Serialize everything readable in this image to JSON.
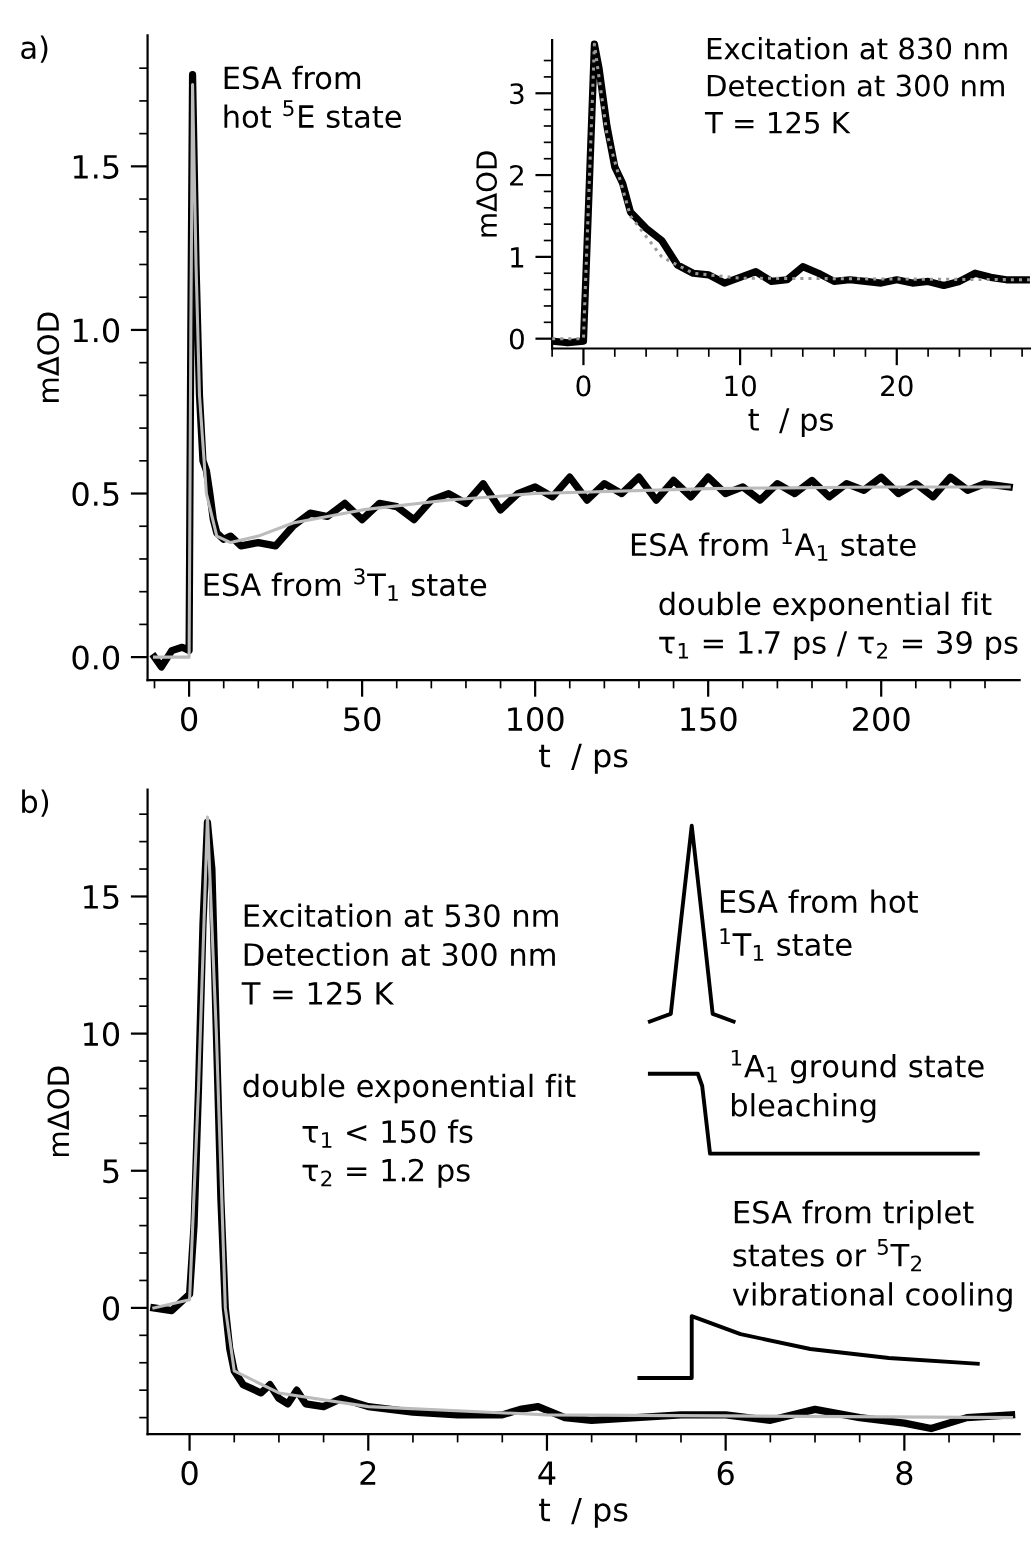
{
  "chart_data": [
    {
      "type": "line",
      "xlabel": "t  / ps",
      "ylabel": "mΔOD",
      "xlim": [
        -12,
        240
      ],
      "ylim": [
        -0.07,
        1.9
      ],
      "xticks": [
        {
          "value": -10,
          "label": null
        },
        0,
        {
          "value": 10,
          "label": null
        },
        {
          "value": 20,
          "label": null
        },
        {
          "value": 30,
          "label": null
        },
        {
          "value": 40,
          "label": null
        },
        50,
        {
          "value": 60,
          "label": null
        },
        {
          "value": 70,
          "label": null
        },
        {
          "value": 80,
          "label": null
        },
        {
          "value": 90,
          "label": null
        },
        100,
        {
          "value": 110,
          "label": null
        },
        {
          "value": 120,
          "label": null
        },
        {
          "value": 130,
          "label": null
        },
        {
          "value": 140,
          "label": null
        },
        150,
        {
          "value": 160,
          "label": null
        },
        {
          "value": 170,
          "label": null
        },
        {
          "value": 180,
          "label": null
        },
        {
          "value": 190,
          "label": null
        },
        200,
        {
          "value": 210,
          "label": null
        },
        {
          "value": 220,
          "label": null
        },
        {
          "value": 230,
          "label": null
        }
      ],
      "yticks": [
        {
          "value": 0,
          "label": "0.0"
        },
        {
          "value": 0.1,
          "label": null
        },
        {
          "value": 0.2,
          "label": null
        },
        {
          "value": 0.3,
          "label": null
        },
        {
          "value": 0.4,
          "label": null
        },
        0.5,
        {
          "value": 0.6,
          "label": null
        },
        {
          "value": 0.7,
          "label": null
        },
        {
          "value": 0.8,
          "label": null
        },
        {
          "value": 0.9,
          "label": null
        },
        {
          "value": 1,
          "label": "1.0"
        },
        {
          "value": 1.1,
          "label": null
        },
        {
          "value": 1.2,
          "label": null
        },
        {
          "value": 1.3,
          "label": null
        },
        {
          "value": 1.4,
          "label": null
        },
        1.5,
        {
          "value": 1.6,
          "label": null
        },
        {
          "value": 1.7,
          "label": null
        },
        {
          "value": 1.8,
          "label": null
        }
      ],
      "grid": false,
      "legend": false,
      "series": [
        {
          "color": "#000000",
          "line_style": "solid",
          "x": [
            -10,
            -8,
            -5,
            -2,
            0,
            0.5,
            1,
            2,
            3,
            4,
            5,
            6,
            7,
            8,
            10,
            12,
            15,
            20,
            25,
            30,
            35,
            40,
            45,
            50,
            55,
            60,
            65,
            70,
            75,
            80,
            85,
            90,
            95,
            100,
            105,
            110,
            115,
            120,
            125,
            130,
            135,
            140,
            145,
            150,
            155,
            160,
            165,
            170,
            175,
            180,
            185,
            190,
            195,
            200,
            205,
            210,
            215,
            220,
            225,
            230,
            237
          ],
          "values": [
            0,
            -0.03,
            0.02,
            0.03,
            0.02,
            1.0,
            1.78,
            1.2,
            0.8,
            0.6,
            0.57,
            0.5,
            0.42,
            0.38,
            0.36,
            0.37,
            0.34,
            0.35,
            0.34,
            0.4,
            0.44,
            0.43,
            0.47,
            0.42,
            0.47,
            0.46,
            0.42,
            0.48,
            0.5,
            0.47,
            0.53,
            0.45,
            0.5,
            0.52,
            0.49,
            0.55,
            0.48,
            0.53,
            0.5,
            0.55,
            0.48,
            0.54,
            0.49,
            0.55,
            0.5,
            0.52,
            0.48,
            0.53,
            0.5,
            0.54,
            0.49,
            0.53,
            0.51,
            0.55,
            0.5,
            0.53,
            0.49,
            0.55,
            0.51,
            0.53,
            0.52
          ]
        },
        {
          "color": "#bbbbbb",
          "line_style": "solid",
          "x": [
            -10,
            0,
            0.5,
            1,
            2,
            3,
            5,
            8,
            12,
            20,
            30,
            50,
            75,
            100,
            150,
            200,
            237
          ],
          "values": [
            0,
            0,
            1.0,
            1.75,
            1.2,
            0.8,
            0.5,
            0.37,
            0.35,
            0.37,
            0.41,
            0.45,
            0.48,
            0.5,
            0.515,
            0.52,
            0.52
          ]
        }
      ],
      "annotations": [
        "a)",
        "ESA from\nhot $^{5}$E state",
        "ESA from $^{3}$T$_{1}$ state",
        "ESA from $^{1}$A$_{1}$ state",
        "double exponential fit\nτ$_{1}$ = 1.7 ps / τ$_{2}$ = 39 ps"
      ]
    },
    {
      "type": "line",
      "xlabel": "t  / ps",
      "ylabel": "mΔOD",
      "xlim": [
        -2,
        28.5
      ],
      "ylim": [
        -0.12,
        3.65
      ],
      "xticks": [
        {
          "value": -2,
          "label": null
        },
        0,
        {
          "value": 2,
          "label": null
        },
        {
          "value": 4,
          "label": null
        },
        {
          "value": 6,
          "label": null
        },
        {
          "value": 8,
          "label": null
        },
        10,
        {
          "value": 12,
          "label": null
        },
        {
          "value": 14,
          "label": null
        },
        {
          "value": 16,
          "label": null
        },
        {
          "value": 18,
          "label": null
        },
        20,
        {
          "value": 22,
          "label": null
        },
        {
          "value": 24,
          "label": null
        },
        {
          "value": 26,
          "label": null
        },
        {
          "value": 28,
          "label": null
        }
      ],
      "yticks": [
        0,
        {
          "value": 0.2,
          "label": null
        },
        {
          "value": 0.4,
          "label": null
        },
        {
          "value": 0.6,
          "label": null
        },
        {
          "value": 0.8,
          "label": null
        },
        1,
        {
          "value": 1.2,
          "label": null
        },
        {
          "value": 1.4,
          "label": null
        },
        {
          "value": 1.6,
          "label": null
        },
        {
          "value": 1.8,
          "label": null
        },
        2,
        {
          "value": 2.2,
          "label": null
        },
        {
          "value": 2.4,
          "label": null
        },
        {
          "value": 2.6,
          "label": null
        },
        {
          "value": 2.8,
          "label": null
        },
        3,
        {
          "value": 3.2,
          "label": null
        },
        {
          "value": 3.4,
          "label": null
        }
      ],
      "grid": false,
      "legend": false,
      "series": [
        {
          "color": "#000000",
          "line_style": "solid",
          "x": [
            -2,
            -1,
            0,
            0.3,
            0.7,
            1,
            1.5,
            2,
            2.5,
            3,
            4,
            5,
            6,
            7,
            8,
            9,
            10,
            11,
            12,
            13,
            14,
            15,
            16,
            17,
            18,
            19,
            20,
            21,
            22,
            23,
            24,
            25,
            26,
            27,
            28.5
          ],
          "values": [
            -0.03,
            -0.05,
            -0.03,
            1.5,
            3.6,
            3.3,
            2.6,
            2.1,
            1.9,
            1.55,
            1.35,
            1.2,
            0.9,
            0.8,
            0.78,
            0.68,
            0.75,
            0.82,
            0.7,
            0.72,
            0.88,
            0.8,
            0.7,
            0.72,
            0.7,
            0.68,
            0.72,
            0.68,
            0.7,
            0.65,
            0.7,
            0.8,
            0.75,
            0.72,
            0.72
          ]
        },
        {
          "color": "#999999",
          "line_style": "dotted",
          "x": [
            -2,
            0,
            0.7,
            1.5,
            3,
            5,
            7,
            10,
            28.5
          ],
          "values": [
            0,
            0,
            3.6,
            2.5,
            1.5,
            1.0,
            0.8,
            0.74,
            0.72
          ]
        }
      ],
      "annotations": [
        "Excitation at 830 nm\nDetection at 300 nm\nT = 125 K"
      ]
    },
    {
      "type": "line",
      "xlabel": "t  / ps",
      "ylabel": "mΔOD",
      "xlim": [
        -0.47,
        9.29
      ],
      "ylim": [
        -4.6,
        18.9
      ],
      "xticks": [
        0,
        {
          "value": 0.5,
          "label": null
        },
        {
          "value": 1,
          "label": null
        },
        {
          "value": 1.5,
          "label": null
        },
        2,
        {
          "value": 2.5,
          "label": null
        },
        {
          "value": 3,
          "label": null
        },
        {
          "value": 3.5,
          "label": null
        },
        4,
        {
          "value": 4.5,
          "label": null
        },
        {
          "value": 5,
          "label": null
        },
        {
          "value": 5.5,
          "label": null
        },
        6,
        {
          "value": 6.5,
          "label": null
        },
        {
          "value": 7,
          "label": null
        },
        {
          "value": 7.5,
          "label": null
        },
        8,
        {
          "value": 8.5,
          "label": null
        },
        {
          "value": 9,
          "label": null
        }
      ],
      "yticks": [
        {
          "value": -4,
          "label": null
        },
        {
          "value": -3,
          "label": null
        },
        {
          "value": -2,
          "label": null
        },
        {
          "value": -1,
          "label": null
        },
        0,
        {
          "value": 1,
          "label": null
        },
        {
          "value": 2,
          "label": null
        },
        {
          "value": 3,
          "label": null
        },
        {
          "value": 4,
          "label": null
        },
        5,
        {
          "value": 6,
          "label": null
        },
        {
          "value": 7,
          "label": null
        },
        {
          "value": 8,
          "label": null
        },
        {
          "value": 9,
          "label": null
        },
        10,
        {
          "value": 11,
          "label": null
        },
        {
          "value": 12,
          "label": null
        },
        {
          "value": 13,
          "label": null
        },
        {
          "value": 14,
          "label": null
        },
        15,
        {
          "value": 16,
          "label": null
        },
        {
          "value": 17,
          "label": null
        },
        {
          "value": 18,
          "label": null
        }
      ],
      "grid": false,
      "legend": false,
      "series": [
        {
          "color": "#000000",
          "line_style": "solid",
          "x": [
            -0.4,
            -0.2,
            0,
            0.05,
            0.1,
            0.15,
            0.2,
            0.25,
            0.3,
            0.35,
            0.4,
            0.45,
            0.5,
            0.6,
            0.8,
            0.9,
            1.0,
            1.1,
            1.2,
            1.3,
            1.5,
            1.7,
            2,
            2.5,
            3,
            3.5,
            3.7,
            3.9,
            4.2,
            4.5,
            5,
            5.5,
            6,
            6.5,
            7,
            7.5,
            8,
            8.3,
            8.7,
            9.2
          ],
          "values": [
            0,
            -0.1,
            0.5,
            3,
            8,
            14,
            17.7,
            16,
            10,
            4,
            0,
            -1.5,
            -2.3,
            -2.8,
            -3.1,
            -2.8,
            -3.3,
            -3.5,
            -3.0,
            -3.5,
            -3.6,
            -3.3,
            -3.6,
            -3.8,
            -3.9,
            -3.9,
            -3.7,
            -3.6,
            -4.0,
            -4.1,
            -4.0,
            -3.9,
            -3.9,
            -4.1,
            -3.7,
            -4.0,
            -4.2,
            -4.4,
            -4.0,
            -3.9
          ]
        },
        {
          "color": "#bbbbbb",
          "line_style": "solid",
          "x": [
            -0.4,
            0,
            0.1,
            0.2,
            0.3,
            0.4,
            0.5,
            1,
            2,
            4,
            9.2
          ],
          "values": [
            0,
            0.3,
            8,
            17.9,
            10,
            0,
            -2.3,
            -3.1,
            -3.6,
            -3.9,
            -4.0
          ]
        }
      ],
      "annotations": [
        "b)",
        "Excitation at 530 nm\nDetection at 300 nm\nT = 125 K",
        "double exponential fit",
        "τ$_{1}$ < 150 fs\nτ$_{2}$ = 1.2 ps",
        "ESA from hot\n$^{1}$T$_{1}$ state",
        "$^{1}$A$_{1}$ ground state\nbleaching",
        "ESA from triplet\nstates or $^{5}$T$_{2}$\nvibrational cooling"
      ]
    }
  ]
}
